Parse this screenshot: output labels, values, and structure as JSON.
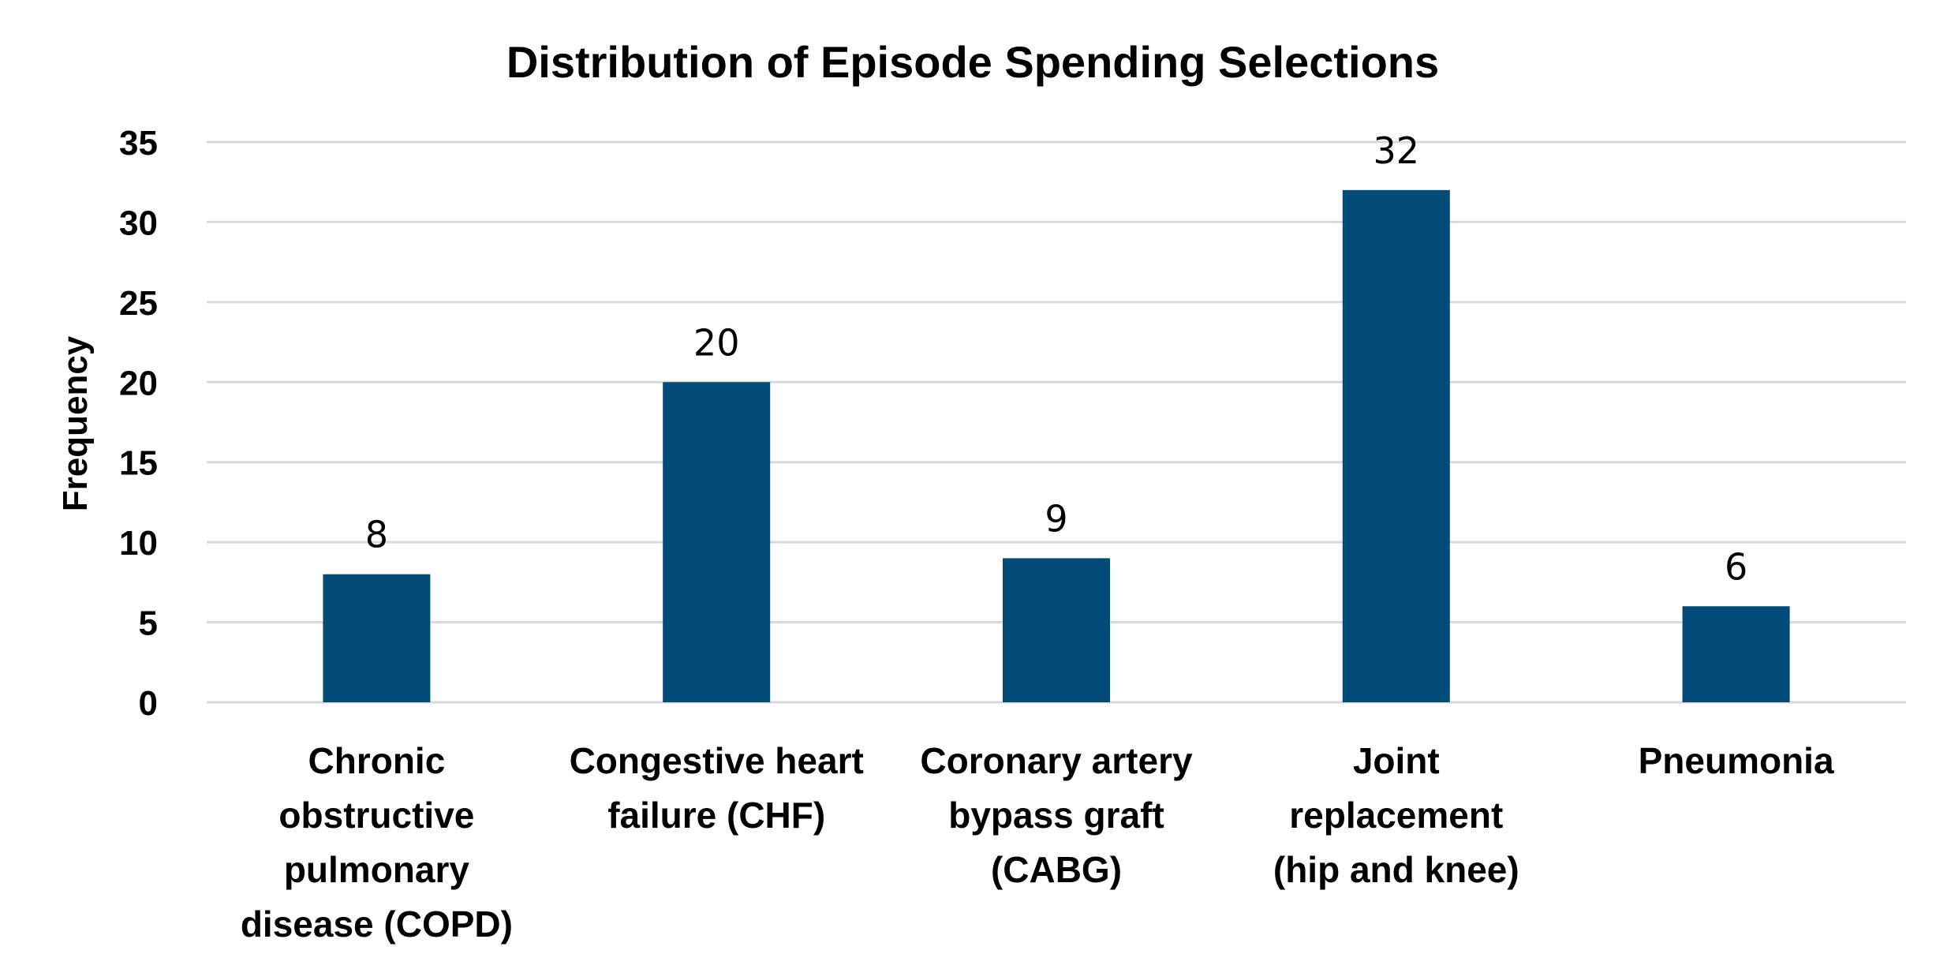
{
  "chart_data": {
    "type": "bar",
    "title": "Distribution of Episode Spending Selections",
    "xlabel": "",
    "ylabel": "Frequency",
    "ylim": [
      0,
      35
    ],
    "yticks": [
      0,
      5,
      10,
      15,
      20,
      25,
      30,
      35
    ],
    "categories": [
      [
        "Chronic",
        "obstructive",
        "pulmonary",
        "disease (COPD)"
      ],
      [
        "Congestive heart",
        "failure (CHF)"
      ],
      [
        "Coronary artery",
        "bypass graft",
        "(CABG)"
      ],
      [
        "Joint",
        "replacement",
        "(hip and knee)"
      ],
      [
        "Pneumonia"
      ]
    ],
    "values": [
      8,
      20,
      9,
      32,
      6
    ],
    "data_labels": [
      "8",
      "20",
      "9",
      "32",
      "6"
    ],
    "bar_color": "#004B78",
    "grid": true,
    "legend": "none"
  }
}
